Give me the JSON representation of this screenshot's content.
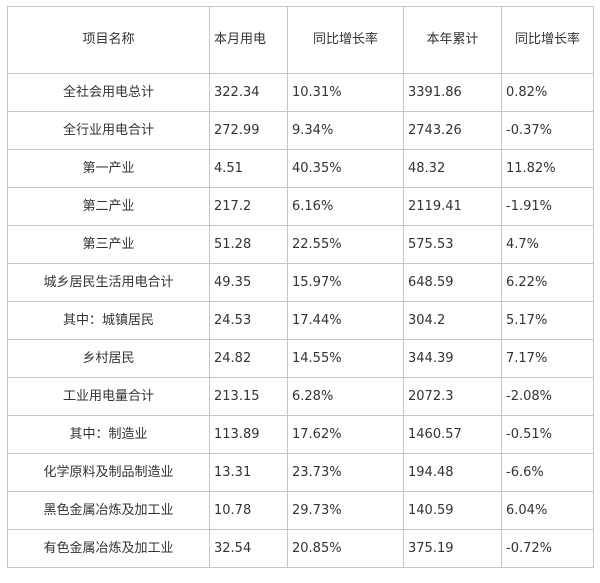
{
  "table": {
    "headers": [
      "项目名称",
      "本月用电",
      "同比增长率",
      "本年累计",
      "同比增长率"
    ],
    "rows": [
      [
        "全社会用电总计",
        "322.34",
        "10.31%",
        "3391.86",
        "0.82%"
      ],
      [
        "全行业用电合计",
        "272.99",
        "9.34%",
        "2743.26",
        "-0.37%"
      ],
      [
        "第一产业",
        "4.51",
        "40.35%",
        "48.32",
        "11.82%"
      ],
      [
        "第二产业",
        "217.2",
        "6.16%",
        "2119.41",
        "-1.91%"
      ],
      [
        "第三产业",
        "51.28",
        "22.55%",
        "575.53",
        "4.7%"
      ],
      [
        "城乡居民生活用电合计",
        "49.35",
        "15.97%",
        "648.59",
        "6.22%"
      ],
      [
        "其中：城镇居民",
        "24.53",
        "17.44%",
        "304.2",
        "5.17%"
      ],
      [
        "乡村居民",
        "24.82",
        "14.55%",
        "344.39",
        "7.17%"
      ],
      [
        "工业用电量合计",
        "213.15",
        "6.28%",
        "2072.3",
        "-2.08%"
      ],
      [
        "其中：制造业",
        "113.89",
        "17.62%",
        "1460.57",
        "-0.51%"
      ],
      [
        "化学原料及制品制造业",
        "13.31",
        "23.73%",
        "194.48",
        "-6.6%"
      ],
      [
        "黑色金属冶炼及加工业",
        "10.78",
        "29.73%",
        "140.59",
        "6.04%"
      ],
      [
        "有色金属冶炼及加工业",
        "32.54",
        "20.85%",
        "375.19",
        "-0.72%"
      ]
    ]
  }
}
